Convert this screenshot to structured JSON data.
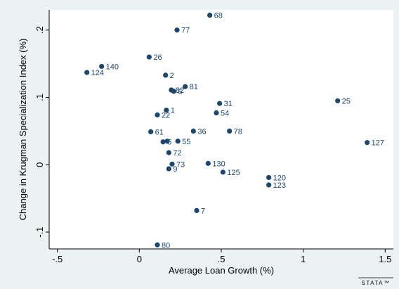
{
  "chart_data": {
    "type": "scatter",
    "xlabel": "Average Loan Growth (%)",
    "ylabel": "Change in Krugman Specialization Index (%)",
    "xlim": [
      -0.55,
      1.55
    ],
    "ylim": [
      -0.125,
      0.23
    ],
    "xticks": [
      -0.5,
      0,
      0.5,
      1,
      1.5
    ],
    "xtick_labels": [
      "-.5",
      "0",
      ".5",
      "1",
      "1.5"
    ],
    "yticks": [
      -0.1,
      0,
      0.1,
      0.2
    ],
    "ytick_labels": [
      "-.1",
      "0",
      ".1",
      ".2"
    ],
    "grid": false,
    "marker_color": "#1a476f",
    "points": [
      {
        "label": "68",
        "x": 0.43,
        "y": 0.222
      },
      {
        "label": "77",
        "x": 0.23,
        "y": 0.2
      },
      {
        "label": "26",
        "x": 0.06,
        "y": 0.16
      },
      {
        "label": "140",
        "x": -0.23,
        "y": 0.146
      },
      {
        "label": "124",
        "x": -0.32,
        "y": 0.137
      },
      {
        "label": "2",
        "x": 0.16,
        "y": 0.133
      },
      {
        "label": "81",
        "x": 0.28,
        "y": 0.116
      },
      {
        "label": "82",
        "x": 0.195,
        "y": 0.111
      },
      {
        "label": "6",
        "x": 0.21,
        "y": 0.109
      },
      {
        "label": "25",
        "x": 1.21,
        "y": 0.095
      },
      {
        "label": "31",
        "x": 0.49,
        "y": 0.091
      },
      {
        "label": "1",
        "x": 0.165,
        "y": 0.081
      },
      {
        "label": "22",
        "x": 0.11,
        "y": 0.074
      },
      {
        "label": "54",
        "x": 0.47,
        "y": 0.077
      },
      {
        "label": "61",
        "x": 0.07,
        "y": 0.049
      },
      {
        "label": "36",
        "x": 0.33,
        "y": 0.05
      },
      {
        "label": "78",
        "x": 0.55,
        "y": 0.05
      },
      {
        "label": "5",
        "x": 0.145,
        "y": 0.034
      },
      {
        "label": "55",
        "x": 0.235,
        "y": 0.035
      },
      {
        "label": "127",
        "x": 1.39,
        "y": 0.033
      },
      {
        "label": "72",
        "x": 0.18,
        "y": 0.018
      },
      {
        "label": "73",
        "x": 0.2,
        "y": 0.001
      },
      {
        "label": "130",
        "x": 0.42,
        "y": 0.002
      },
      {
        "label": "9",
        "x": 0.18,
        "y": -0.006
      },
      {
        "label": "125",
        "x": 0.51,
        "y": -0.011
      },
      {
        "label": "120",
        "x": 0.79,
        "y": -0.019
      },
      {
        "label": "123",
        "x": 0.79,
        "y": -0.03
      },
      {
        "label": "7",
        "x": 0.35,
        "y": -0.068
      },
      {
        "label": "80",
        "x": 0.11,
        "y": -0.119
      }
    ],
    "extra_marker": {
      "x": 0.17,
      "y": 0.035
    }
  },
  "branding": {
    "logo_text": "STATA™"
  }
}
